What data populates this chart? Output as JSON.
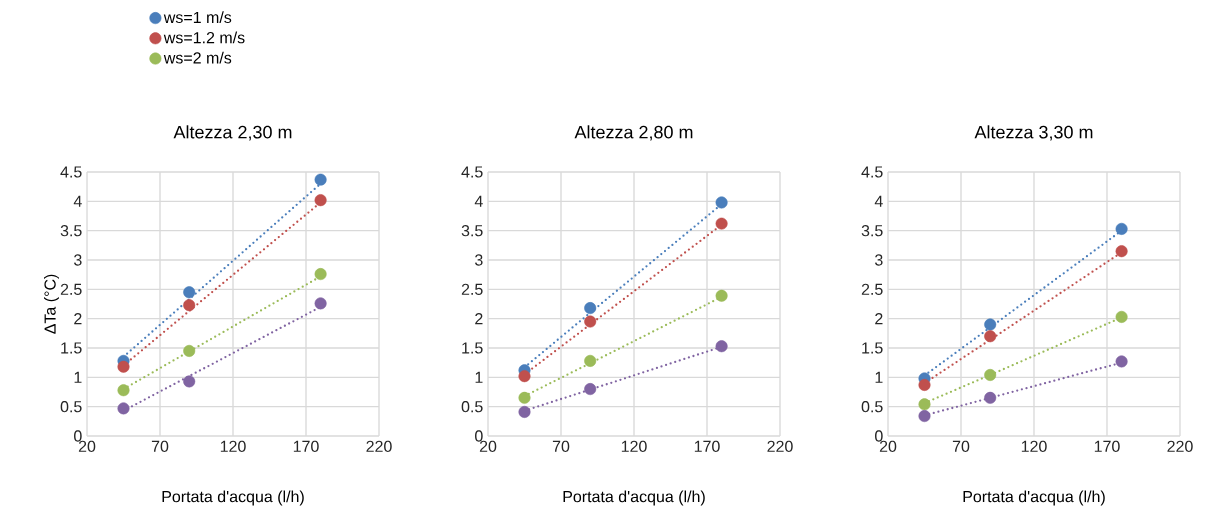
{
  "chart_data": [
    {
      "type": "scatter",
      "title": "Altezza 2,30 m",
      "xlabel": "Portata d'acqua (l/h)",
      "ylabel": "ΔTa (°C)",
      "xlim": [
        20,
        220
      ],
      "xticks": [
        20,
        70,
        120,
        170,
        220
      ],
      "ylim": [
        0,
        4.5
      ],
      "yticks": [
        0,
        0.5,
        1,
        1.5,
        2,
        2.5,
        3,
        3.5,
        4,
        4.5
      ],
      "grid": true,
      "legend": "top left",
      "marker": "circle",
      "x": [
        45,
        90,
        180
      ],
      "series": [
        {
          "name": "ws=1 m/s",
          "color": "#4a7ebb",
          "values": [
            1.28,
            2.45,
            4.37
          ]
        },
        {
          "name": "ws=1.2 m/s",
          "color": "#c0504d",
          "values": [
            1.18,
            2.23,
            4.02
          ]
        },
        {
          "name": "ws=2 m/s",
          "color": "#9bbb59",
          "values": [
            0.78,
            1.45,
            2.76
          ]
        },
        {
          "color": "#8064a2",
          "values": [
            0.47,
            0.93,
            2.26
          ]
        },
        {
          "type": "line",
          "marker": "none",
          "line_style": "dotted",
          "color": "#4a7ebb",
          "values": [
            1.35,
            2.33,
            4.3
          ]
        },
        {
          "type": "line",
          "marker": "none",
          "line_style": "dotted",
          "color": "#c0504d",
          "values": [
            1.2,
            2.13,
            3.98
          ]
        },
        {
          "type": "line",
          "marker": "none",
          "line_style": "dotted",
          "color": "#9bbb59",
          "values": [
            0.8,
            1.44,
            2.72
          ]
        },
        {
          "type": "line",
          "marker": "none",
          "line_style": "dotted",
          "color": "#8064a2",
          "values": [
            0.43,
            1.02,
            2.2
          ]
        }
      ]
    },
    {
      "type": "scatter",
      "title": "Altezza 2,80 m",
      "xlabel": "Portata d'acqua (l/h)",
      "xlim": [
        20,
        220
      ],
      "xticks": [
        20,
        70,
        120,
        170,
        220
      ],
      "ylim": [
        0,
        4.5
      ],
      "yticks": [
        0,
        0.5,
        1,
        1.5,
        2,
        2.5,
        3,
        3.5,
        4,
        4.5
      ],
      "grid": true,
      "marker": "circle",
      "x": [
        45,
        90,
        180
      ],
      "series": [
        {
          "color": "#4a7ebb",
          "values": [
            1.12,
            2.18,
            3.98
          ]
        },
        {
          "color": "#c0504d",
          "values": [
            1.02,
            1.95,
            3.62
          ]
        },
        {
          "color": "#9bbb59",
          "values": [
            0.65,
            1.28,
            2.39
          ]
        },
        {
          "color": "#8064a2",
          "values": [
            0.41,
            0.8,
            1.53
          ]
        },
        {
          "type": "line",
          "marker": "none",
          "line_style": "dotted",
          "color": "#4a7ebb",
          "values": [
            1.17,
            2.1,
            3.95
          ]
        },
        {
          "type": "line",
          "marker": "none",
          "line_style": "dotted",
          "color": "#c0504d",
          "values": [
            1.05,
            1.9,
            3.6
          ]
        },
        {
          "type": "line",
          "marker": "none",
          "line_style": "dotted",
          "color": "#9bbb59",
          "values": [
            0.68,
            1.24,
            2.37
          ]
        },
        {
          "type": "line",
          "marker": "none",
          "line_style": "dotted",
          "color": "#8064a2",
          "values": [
            0.43,
            0.79,
            1.52
          ]
        }
      ]
    },
    {
      "type": "scatter",
      "title": "Altezza 3,30 m",
      "xlabel": "Portata d'acqua (l/h)",
      "xlim": [
        20,
        220
      ],
      "xticks": [
        20,
        70,
        120,
        170,
        220
      ],
      "ylim": [
        0,
        4.5
      ],
      "yticks": [
        0,
        0.5,
        1,
        1.5,
        2,
        2.5,
        3,
        3.5,
        4,
        4.5
      ],
      "grid": true,
      "marker": "circle",
      "x": [
        45,
        90,
        180
      ],
      "series": [
        {
          "color": "#4a7ebb",
          "values": [
            0.98,
            1.9,
            3.53
          ]
        },
        {
          "color": "#c0504d",
          "values": [
            0.87,
            1.7,
            3.15
          ]
        },
        {
          "color": "#9bbb59",
          "values": [
            0.54,
            1.04,
            2.03
          ]
        },
        {
          "color": "#8064a2",
          "values": [
            0.34,
            0.65,
            1.27
          ]
        },
        {
          "type": "line",
          "marker": "none",
          "line_style": "dotted",
          "color": "#4a7ebb",
          "values": [
            1.03,
            1.85,
            3.5
          ]
        },
        {
          "type": "line",
          "marker": "none",
          "line_style": "dotted",
          "color": "#c0504d",
          "values": [
            0.9,
            1.64,
            3.13
          ]
        },
        {
          "type": "line",
          "marker": "none",
          "line_style": "dotted",
          "color": "#9bbb59",
          "values": [
            0.56,
            1.04,
            2.02
          ]
        },
        {
          "type": "line",
          "marker": "none",
          "line_style": "dotted",
          "color": "#8064a2",
          "values": [
            0.35,
            0.65,
            1.25
          ]
        }
      ]
    }
  ]
}
